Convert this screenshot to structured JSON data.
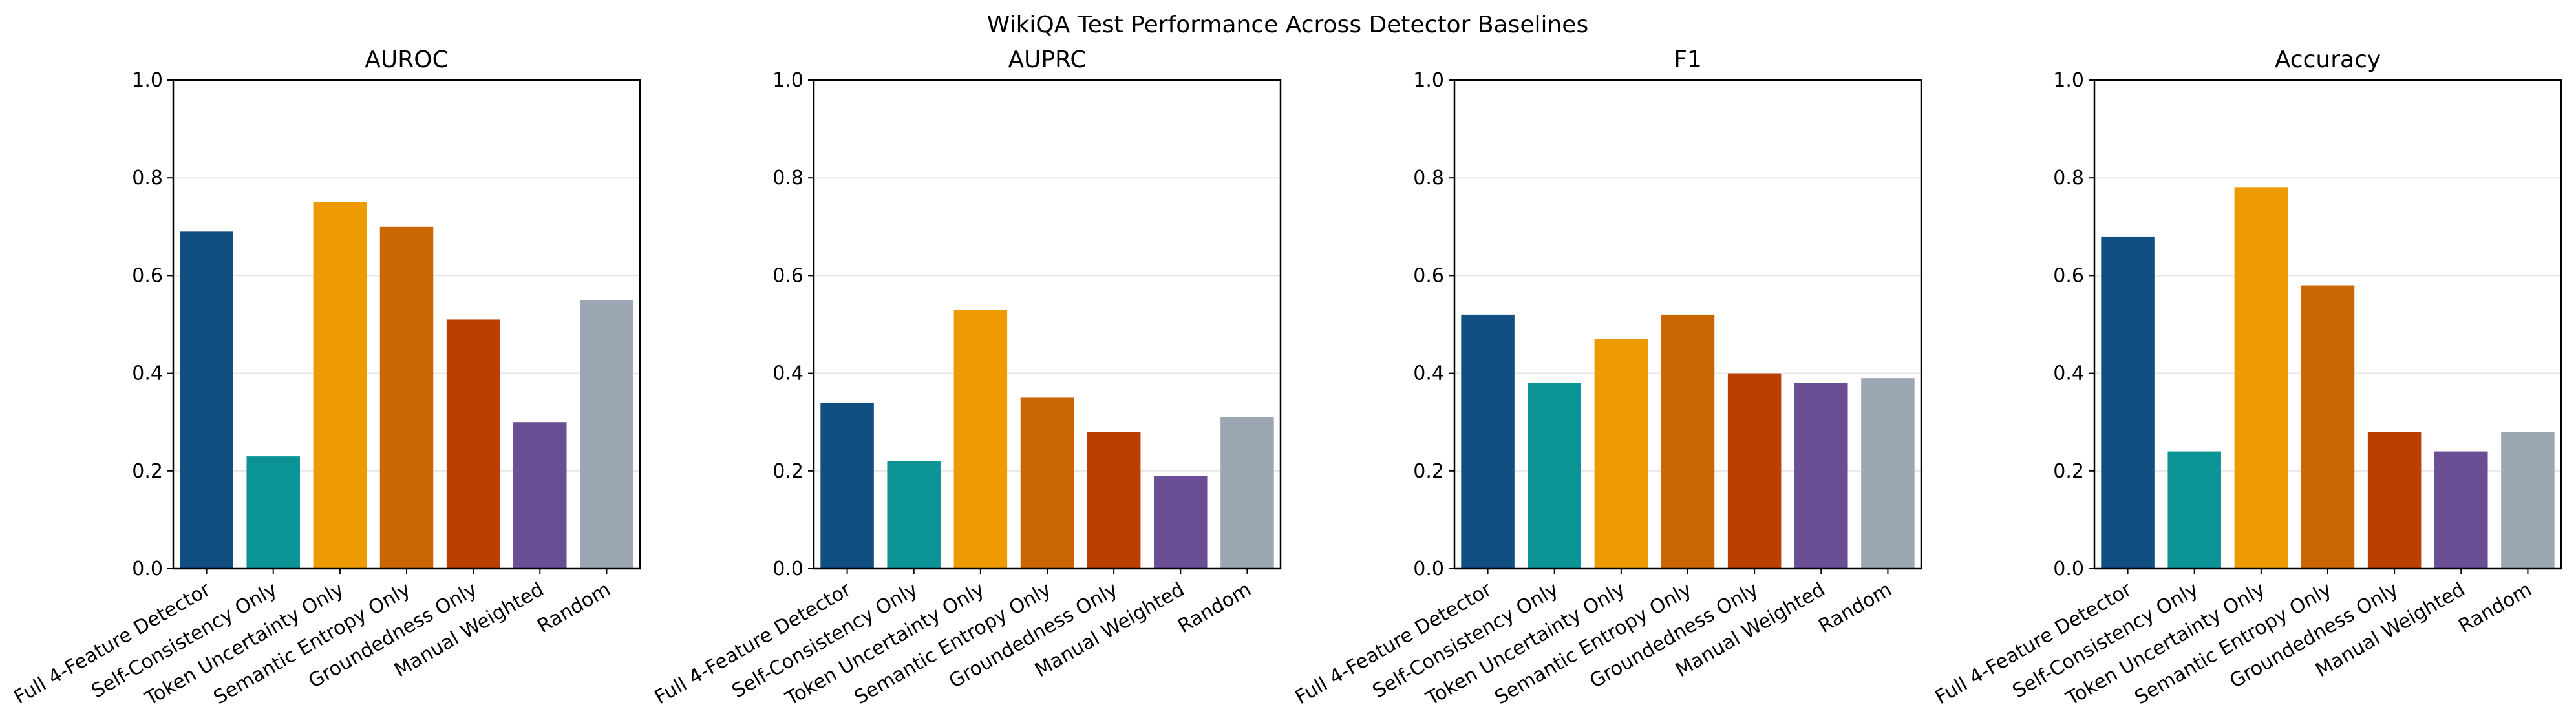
{
  "chart_data": {
    "title": "WikiQA Test Performance Across Detector Baselines",
    "type": "bar",
    "categories": [
      "Full 4-Feature Detector",
      "Self-Consistency Only",
      "Token Uncertainty Only",
      "Semantic Entropy Only",
      "Groundedness Only",
      "Manual Weighted",
      "Random"
    ],
    "colors": [
      "#114e82",
      "#0b9396",
      "#ee9b01",
      "#ca6702",
      "#bb3e03",
      "#6b4f96",
      "#9ca7b3"
    ],
    "ylim": [
      0,
      1.0
    ],
    "yticks": [
      0.0,
      0.2,
      0.4,
      0.6,
      0.8,
      1.0
    ],
    "ytick_labels": [
      "0.0",
      "0.2",
      "0.4",
      "0.6",
      "0.8",
      "1.0"
    ],
    "grid": "horizontal",
    "panels": [
      {
        "title": "AUROC",
        "values": [
          0.69,
          0.23,
          0.75,
          0.7,
          0.51,
          0.3,
          0.55
        ]
      },
      {
        "title": "AUPRC",
        "values": [
          0.34,
          0.22,
          0.53,
          0.35,
          0.28,
          0.19,
          0.31
        ]
      },
      {
        "title": "F1",
        "values": [
          0.52,
          0.38,
          0.47,
          0.52,
          0.4,
          0.38,
          0.39
        ]
      },
      {
        "title": "Accuracy",
        "values": [
          0.68,
          0.24,
          0.78,
          0.58,
          0.28,
          0.24,
          0.28
        ]
      }
    ]
  }
}
